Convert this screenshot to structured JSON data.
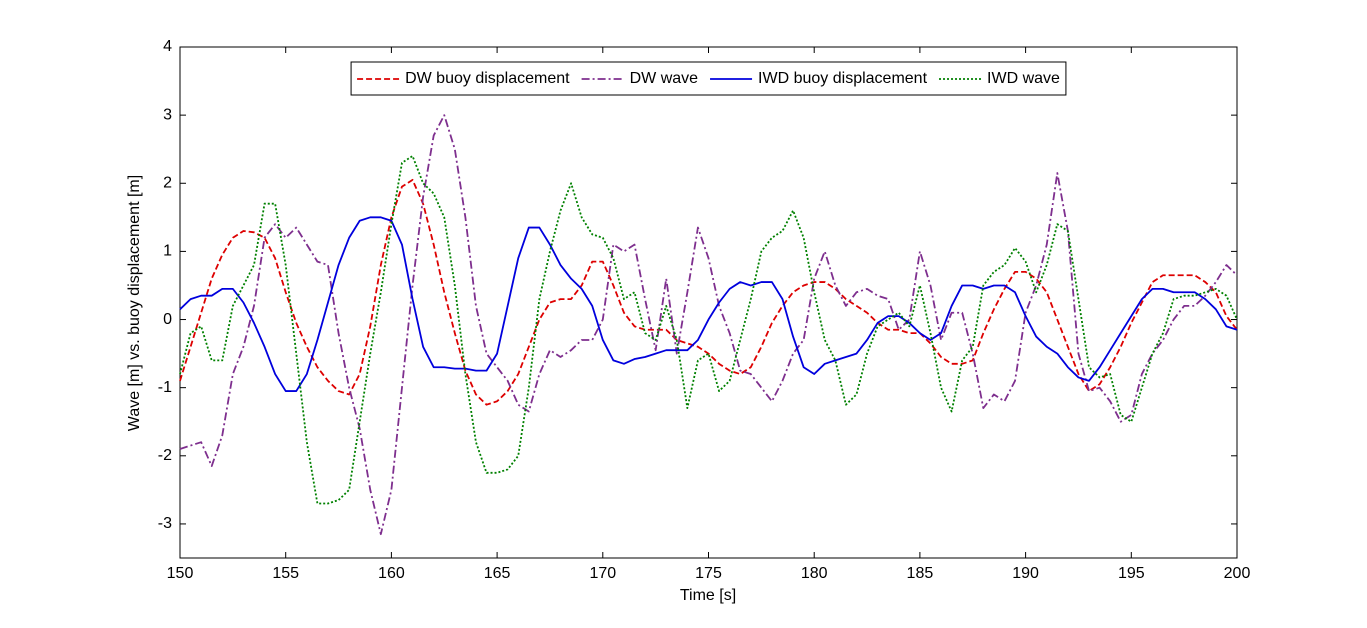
{
  "chart_data": {
    "type": "line",
    "xlabel": "Time [s]",
    "ylabel": "Wave [m] vs. buoy displacement [m]",
    "x": [
      150,
      150.5,
      151,
      151.5,
      152,
      152.5,
      153,
      153.5,
      154,
      154.5,
      155,
      155.5,
      156,
      156.5,
      157,
      157.5,
      158,
      158.5,
      159,
      159.5,
      160,
      160.5,
      161,
      161.5,
      162,
      162.5,
      163,
      163.5,
      164,
      164.5,
      165,
      165.5,
      166,
      166.5,
      167,
      167.5,
      168,
      168.5,
      169,
      169.5,
      170,
      170.5,
      171,
      171.5,
      172,
      172.5,
      173,
      173.5,
      174,
      174.5,
      175,
      175.5,
      176,
      176.5,
      177,
      177.5,
      178,
      178.5,
      179,
      179.5,
      180,
      180.5,
      181,
      181.5,
      182,
      182.5,
      183,
      183.5,
      184,
      184.5,
      185,
      185.5,
      186,
      186.5,
      187,
      187.5,
      188,
      188.5,
      189,
      189.5,
      190,
      190.5,
      191,
      191.5,
      192,
      192.5,
      193,
      193.5,
      194,
      194.5,
      195,
      195.5,
      196,
      196.5,
      197,
      197.5,
      198,
      198.5,
      199,
      199.5,
      200
    ],
    "series": [
      {
        "name": "DW buoy displacement",
        "color": "#dd0000",
        "style": "dashed",
        "values": [
          -0.9,
          -0.4,
          0.1,
          0.6,
          0.95,
          1.2,
          1.3,
          1.28,
          1.2,
          0.9,
          0.4,
          -0.05,
          -0.4,
          -0.7,
          -0.9,
          -1.05,
          -1.1,
          -0.8,
          -0.1,
          0.8,
          1.5,
          1.95,
          2.05,
          1.7,
          1.1,
          0.4,
          -0.2,
          -0.75,
          -1.1,
          -1.25,
          -1.2,
          -1.05,
          -0.8,
          -0.4,
          0.0,
          0.25,
          0.3,
          0.3,
          0.5,
          0.85,
          0.85,
          0.5,
          0.1,
          -0.1,
          -0.15,
          -0.15,
          -0.15,
          -0.3,
          -0.35,
          -0.4,
          -0.5,
          -0.65,
          -0.75,
          -0.8,
          -0.7,
          -0.4,
          -0.05,
          0.2,
          0.4,
          0.5,
          0.55,
          0.55,
          0.45,
          0.3,
          0.2,
          0.1,
          -0.05,
          -0.15,
          -0.15,
          -0.2,
          -0.2,
          -0.35,
          -0.55,
          -0.65,
          -0.65,
          -0.6,
          -0.2,
          0.15,
          0.45,
          0.7,
          0.7,
          0.6,
          0.4,
          0.0,
          -0.4,
          -0.8,
          -1.05,
          -0.95,
          -0.7,
          -0.4,
          -0.05,
          0.25,
          0.55,
          0.65,
          0.65,
          0.65,
          0.65,
          0.55,
          0.4,
          0.05,
          -0.15
        ]
      },
      {
        "name": "DW wave",
        "color": "#7e2f8e",
        "style": "dashdot",
        "values": [
          -1.9,
          -1.85,
          -1.8,
          -2.15,
          -1.7,
          -0.8,
          -0.4,
          0.2,
          1.2,
          1.4,
          1.2,
          1.35,
          1.1,
          0.85,
          0.8,
          -0.2,
          -1.0,
          -1.6,
          -2.5,
          -3.15,
          -2.5,
          -1.0,
          0.5,
          1.8,
          2.7,
          3.0,
          2.5,
          1.5,
          0.2,
          -0.5,
          -0.7,
          -0.9,
          -1.25,
          -1.35,
          -0.8,
          -0.45,
          -0.55,
          -0.45,
          -0.3,
          -0.3,
          0.0,
          1.1,
          1.0,
          1.1,
          0.3,
          -0.45,
          0.6,
          -0.5,
          0.4,
          1.35,
          0.9,
          0.2,
          -0.2,
          -0.75,
          -0.8,
          -1.0,
          -1.2,
          -0.9,
          -0.5,
          -0.3,
          0.6,
          1.0,
          0.5,
          0.2,
          0.4,
          0.45,
          0.35,
          0.3,
          -0.15,
          0.0,
          1.0,
          0.5,
          -0.3,
          0.1,
          0.1,
          -0.5,
          -1.3,
          -1.1,
          -1.2,
          -0.9,
          0.1,
          0.5,
          1.1,
          2.15,
          1.3,
          -0.5,
          -1.05,
          -1.0,
          -1.2,
          -1.5,
          -1.4,
          -0.8,
          -0.5,
          -0.3,
          0.0,
          0.2,
          0.2,
          0.35,
          0.55,
          0.8,
          0.65
        ]
      },
      {
        "name": "IWD buoy displacement",
        "color": "#0000dd",
        "style": "solid",
        "values": [
          0.15,
          0.3,
          0.35,
          0.35,
          0.45,
          0.45,
          0.25,
          -0.05,
          -0.4,
          -0.8,
          -1.05,
          -1.05,
          -0.8,
          -0.3,
          0.25,
          0.8,
          1.2,
          1.45,
          1.5,
          1.5,
          1.45,
          1.1,
          0.3,
          -0.4,
          -0.7,
          -0.7,
          -0.72,
          -0.72,
          -0.75,
          -0.75,
          -0.5,
          0.2,
          0.9,
          1.35,
          1.35,
          1.1,
          0.8,
          0.6,
          0.45,
          0.2,
          -0.3,
          -0.6,
          -0.65,
          -0.58,
          -0.55,
          -0.5,
          -0.45,
          -0.45,
          -0.45,
          -0.3,
          0.0,
          0.25,
          0.45,
          0.55,
          0.5,
          0.55,
          0.55,
          0.3,
          -0.25,
          -0.7,
          -0.8,
          -0.65,
          -0.6,
          -0.55,
          -0.5,
          -0.3,
          -0.05,
          0.05,
          0.05,
          -0.05,
          -0.2,
          -0.3,
          -0.2,
          0.2,
          0.5,
          0.5,
          0.45,
          0.5,
          0.5,
          0.4,
          0.05,
          -0.25,
          -0.4,
          -0.5,
          -0.7,
          -0.85,
          -0.9,
          -0.7,
          -0.45,
          -0.2,
          0.05,
          0.3,
          0.45,
          0.45,
          0.4,
          0.4,
          0.4,
          0.3,
          0.15,
          -0.1,
          -0.15
        ]
      },
      {
        "name": "IWD wave",
        "color": "#008000",
        "style": "dotted",
        "values": [
          -0.8,
          -0.2,
          -0.1,
          -0.6,
          -0.6,
          0.2,
          0.5,
          0.8,
          1.7,
          1.7,
          0.8,
          -0.5,
          -1.8,
          -2.7,
          -2.7,
          -2.65,
          -2.5,
          -1.5,
          -0.5,
          0.4,
          1.4,
          2.3,
          2.4,
          2.0,
          1.85,
          1.5,
          0.5,
          -0.8,
          -1.8,
          -2.25,
          -2.25,
          -2.2,
          -2.0,
          -1.0,
          0.3,
          1.0,
          1.6,
          2.0,
          1.5,
          1.25,
          1.2,
          0.9,
          0.3,
          0.4,
          -0.2,
          -0.3,
          0.2,
          -0.3,
          -1.3,
          -0.6,
          -0.5,
          -1.05,
          -0.9,
          -0.3,
          0.3,
          1.0,
          1.2,
          1.3,
          1.6,
          1.2,
          0.4,
          -0.3,
          -0.6,
          -1.25,
          -1.1,
          -0.5,
          -0.1,
          0.0,
          0.1,
          -0.1,
          0.5,
          -0.2,
          -1.0,
          -1.35,
          -0.6,
          -0.4,
          0.5,
          0.7,
          0.8,
          1.05,
          0.85,
          0.4,
          0.8,
          1.4,
          1.3,
          0.3,
          -0.7,
          -0.85,
          -0.8,
          -1.4,
          -1.5,
          -1.0,
          -0.5,
          -0.2,
          0.3,
          0.35,
          0.35,
          0.4,
          0.45,
          0.35,
          0.0
        ]
      }
    ],
    "xlim": [
      150,
      200
    ],
    "xticks": [
      150,
      155,
      160,
      165,
      170,
      175,
      180,
      185,
      190,
      195,
      200
    ],
    "ylim": [
      -3.5,
      4
    ],
    "yticks": [
      -3,
      -2,
      -1,
      0,
      1,
      2,
      3,
      4
    ],
    "grid": false,
    "legend": "top"
  }
}
